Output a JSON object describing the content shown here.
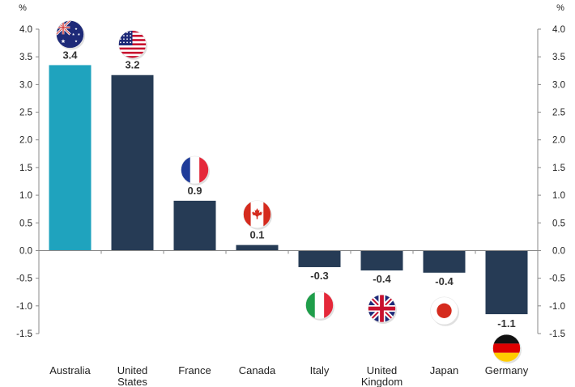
{
  "chart_data": {
    "type": "bar",
    "unit_left": "%",
    "unit_right": "%",
    "ylim": [
      -1.5,
      4.0
    ],
    "yticks": [
      "4.0",
      "3.5",
      "3.0",
      "2.5",
      "2.0",
      "1.5",
      "1.0",
      "0.5",
      "0.0",
      "-0.5",
      "-1.0",
      "-1.5"
    ],
    "categories": [
      [
        "Australia"
      ],
      [
        "United",
        "States"
      ],
      [
        "France"
      ],
      [
        "Canada"
      ],
      [
        "Italy"
      ],
      [
        "United",
        "Kingdom"
      ],
      [
        "Japan"
      ],
      [
        "Germany"
      ]
    ],
    "values": [
      3.35,
      3.17,
      0.9,
      0.1,
      -0.3,
      -0.36,
      -0.4,
      -1.15
    ],
    "value_labels": [
      "3.4",
      "3.2",
      "0.9",
      "0.1",
      "-0.3",
      "-0.4",
      "-0.4",
      "-1.1"
    ],
    "flag_icons": [
      "australia-flag-icon",
      "united-states-flag-icon",
      "france-flag-icon",
      "canada-flag-icon",
      "italy-flag-icon",
      "united-kingdom-flag-icon",
      "japan-flag-icon",
      "germany-flag-icon"
    ],
    "colors": {
      "highlight": "#1FA3BE",
      "bar": "#263B55",
      "axis": "#888888"
    },
    "highlight_index": 0
  }
}
